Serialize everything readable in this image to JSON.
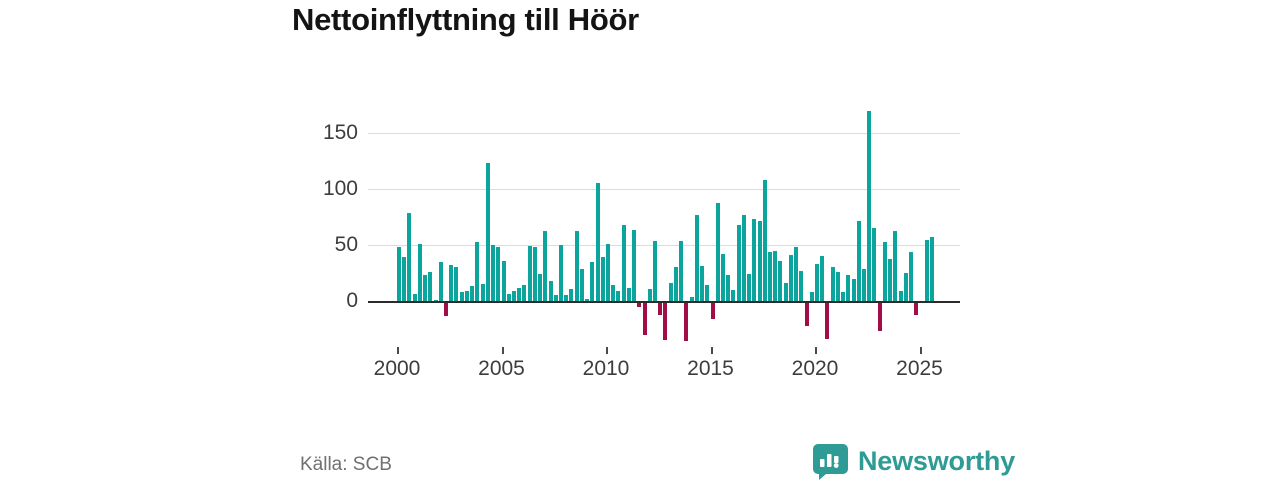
{
  "title": "Nettoinflyttning till Höör",
  "source_label": "Källa: SCB",
  "brand": {
    "name": "Newsworthy",
    "color": "#2e9b94"
  },
  "colors": {
    "positive_bar": "#0ca59d",
    "negative_bar": "#a30d47",
    "gridline": "#dcdcdc",
    "zero_line": "#2b2b2b"
  },
  "chart_data": {
    "type": "bar",
    "title": "Nettoinflyttning till Höör",
    "xlabel": "",
    "ylabel": "",
    "frequency": "quarterly",
    "start": {
      "year": 2000,
      "quarter": 1
    },
    "end": {
      "year": 2025,
      "quarter": 3
    },
    "x_ticks": [
      2000,
      2005,
      2010,
      2015,
      2020,
      2025
    ],
    "y_ticks": [
      0,
      50,
      100,
      150
    ],
    "ylim": [
      -40,
      175
    ],
    "grid": true,
    "legend": "none",
    "values": [
      48,
      39,
      79,
      6,
      51,
      23,
      26,
      1,
      35,
      -12,
      32,
      30,
      8,
      9,
      13,
      53,
      15,
      124,
      50,
      48,
      36,
      6,
      9,
      12,
      14,
      49,
      48,
      24,
      63,
      18,
      5,
      50,
      5,
      11,
      63,
      29,
      2,
      35,
      106,
      39,
      51,
      14,
      9,
      68,
      12,
      64,
      -4,
      -29,
      11,
      54,
      -11,
      -33,
      16,
      30,
      54,
      -34,
      4,
      77,
      31,
      14,
      -14,
      88,
      42,
      23,
      10,
      68,
      77,
      24,
      73,
      72,
      108,
      44,
      45,
      36,
      16,
      41,
      48,
      27,
      -21,
      8,
      33,
      40,
      -32,
      30,
      26,
      8,
      23,
      20,
      72,
      29,
      170,
      65,
      -25,
      53,
      38,
      63,
      9,
      25,
      44,
      -11,
      0,
      55,
      57
    ]
  }
}
